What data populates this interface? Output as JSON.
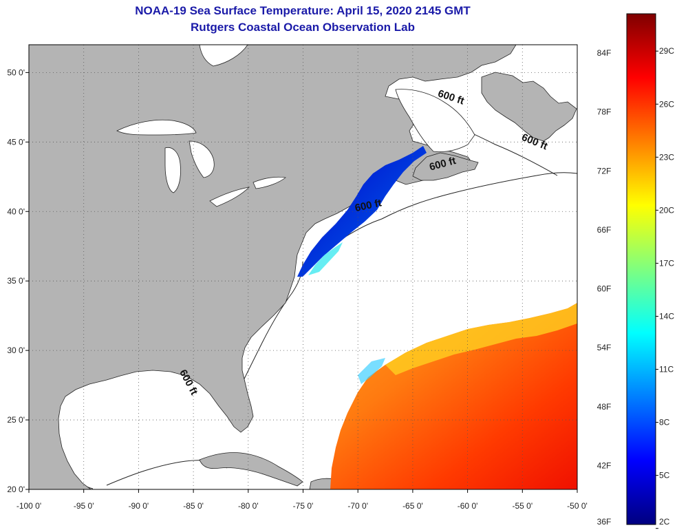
{
  "header": {
    "title": "NOAA-19 Sea Surface Temperature:  April 15, 2020 2145 GMT",
    "subtitle": "Rutgers Coastal Ocean Observation Lab"
  },
  "map": {
    "lon_range": [
      -100,
      -50
    ],
    "lat_range": [
      20,
      52
    ],
    "lon_ticks": [
      {
        "value": -100,
        "label": "-100 0'"
      },
      {
        "value": -95,
        "label": "-95 0'"
      },
      {
        "value": -90,
        "label": "-90 0'"
      },
      {
        "value": -85,
        "label": "-85 0'"
      },
      {
        "value": -80,
        "label": "-80 0'"
      },
      {
        "value": -75,
        "label": "-75 0'"
      },
      {
        "value": -70,
        "label": "-70 0'"
      },
      {
        "value": -65,
        "label": "-65 0'"
      },
      {
        "value": -60,
        "label": "-60 0'"
      },
      {
        "value": -55,
        "label": "-55 0'"
      },
      {
        "value": -50,
        "label": "-50 0'"
      }
    ],
    "lat_ticks": [
      {
        "value": 50,
        "label": "50 0'"
      },
      {
        "value": 45,
        "label": "45 0'"
      },
      {
        "value": 40,
        "label": "40 0'"
      },
      {
        "value": 35,
        "label": "35 0'"
      },
      {
        "value": 30,
        "label": "30 0'"
      },
      {
        "value": 25,
        "label": "25 0'"
      },
      {
        "value": 20,
        "label": "20 0'"
      }
    ],
    "contour_labels": [
      {
        "text": "600 ft",
        "lon": -61.6,
        "lat": 48.0
      },
      {
        "text": "600 ft",
        "lon": -54.0,
        "lat": 44.8
      },
      {
        "text": "600 ft",
        "lon": -62.2,
        "lat": 43.2
      },
      {
        "text": "600 ft",
        "lon": -69.0,
        "lat": 40.2
      },
      {
        "text": "600 ft",
        "lon": -85.7,
        "lat": 27.6
      }
    ],
    "colors": {
      "land": "#b4b4b4",
      "ocean": "#ffffff",
      "grid": "#555555"
    }
  },
  "colorbar": {
    "min_f": 36,
    "max_f": 88,
    "f_labels": [
      "84F",
      "78F",
      "72F",
      "66F",
      "60F",
      "54F",
      "48F",
      "42F",
      "36F"
    ],
    "f_values": [
      84,
      78,
      72,
      66,
      60,
      54,
      48,
      42,
      36
    ],
    "c_labels": [
      "29C",
      "26C",
      "23C",
      "20C",
      "17C",
      "14C",
      "11C",
      "8C",
      "5C",
      "2C"
    ],
    "c_values": [
      29,
      26,
      23,
      20,
      17,
      14,
      11,
      8,
      5,
      2
    ],
    "stops": [
      "#00007f",
      "#0000ff",
      "#007fff",
      "#00ffff",
      "#7fff7f",
      "#ffff00",
      "#ff7f00",
      "#ff0000",
      "#7f0000"
    ]
  }
}
